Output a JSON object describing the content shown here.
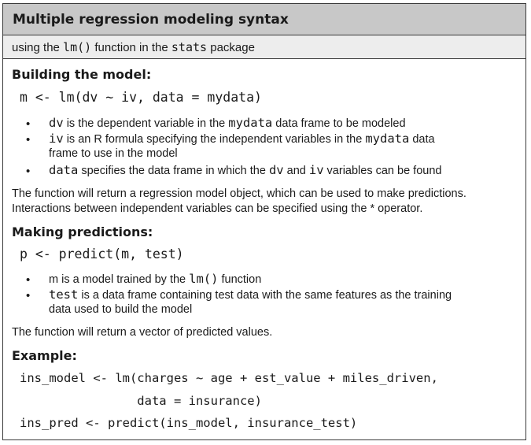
{
  "title": "Multiple regression modeling syntax",
  "subtitle": {
    "pre": "using the ",
    "func": "lm()",
    "mid": " function in the ",
    "pkg": "stats",
    "post": " package"
  },
  "building": {
    "heading": "Building the model:",
    "code": "m <- lm(dv ~ iv, data = mydata)",
    "bullets": [
      {
        "term": "dv",
        "text1": " is the dependent variable in the ",
        "code1": "mydata",
        "text2": " data frame to be modeled"
      },
      {
        "term": "iv",
        "text1": " is an R formula specifying the independent variables in the ",
        "code1": "mydata",
        "text2": " data",
        "line2": "frame to use in the model"
      },
      {
        "term": "data",
        "text1": " specifies the data frame in which the ",
        "code1": "dv",
        "text2": " and ",
        "code2": "iv",
        "text3": " variables can be found"
      }
    ],
    "para_line1": "The function will return a regression model object, which can be used to make predictions.",
    "para_line2": "Interactions between independent variables can be specified using the * operator."
  },
  "predictions": {
    "heading": "Making predictions:",
    "code": "p <- predict(m, test)",
    "bullets": [
      {
        "term": "m",
        "text1": " is a model trained by the ",
        "code1": "lm()",
        "text2": " function"
      },
      {
        "term": "test",
        "text1": " is a data frame containing test data with the same features as the training",
        "line2": "data used to build the model"
      }
    ],
    "para": "The function will return a vector of predicted values."
  },
  "example": {
    "heading": "Example:",
    "lines": [
      "ins_model <- lm(charges ~ age + est_value + miles_driven,",
      "                data = insurance)",
      "ins_pred <- predict(ins_model, insurance_test)"
    ]
  }
}
